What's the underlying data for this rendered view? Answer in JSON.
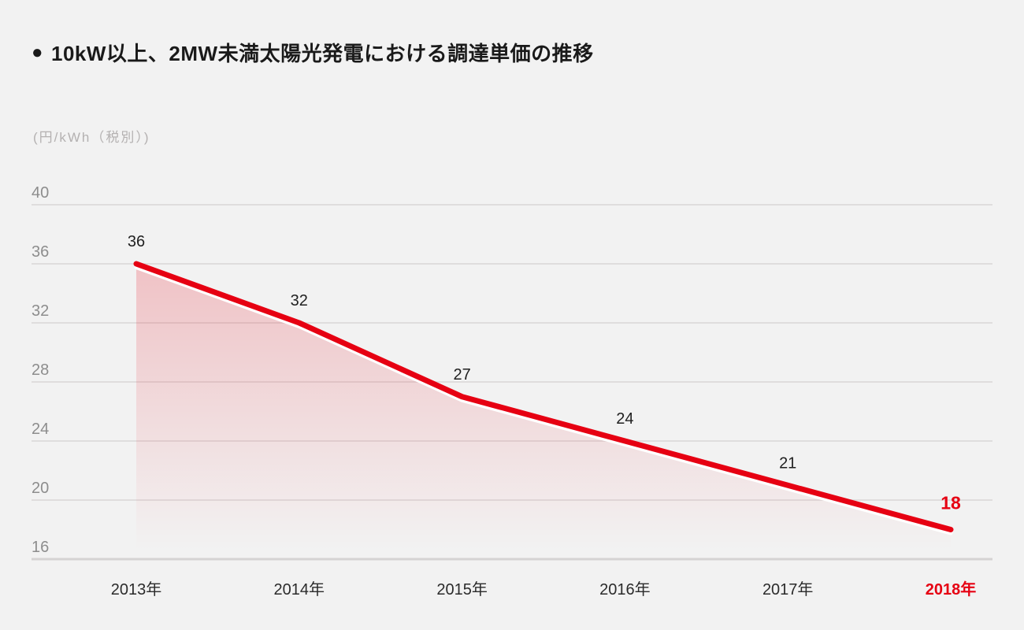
{
  "header": {
    "bullet": "●",
    "title": "10kW以上、2MW未満太陽光発電における調達単価の推移"
  },
  "axis": {
    "unit_label": "(円/kWh（税別）)"
  },
  "chart_data": {
    "type": "area",
    "title": "10kW以上、2MW未満太陽光発電における調達単価の推移",
    "ylabel": "(円/kWh（税別）)",
    "categories": [
      "2013年",
      "2014年",
      "2015年",
      "2016年",
      "2017年",
      "2018年"
    ],
    "values": [
      36,
      32,
      27,
      24,
      21,
      18
    ],
    "yticks": [
      40,
      36,
      32,
      28,
      24,
      20,
      16
    ],
    "ylim": [
      16,
      40
    ],
    "grid": "horizontal-only",
    "legend": "none",
    "highlight_index": 5,
    "colors": {
      "accent": "#e60012",
      "line": "#e60012",
      "line_underlay": "#ffffff",
      "area_top": "rgba(230,0,18,0.20)",
      "area_bottom": "rgba(230,0,18,0)",
      "value_label": "#1f1f1f",
      "category_label": "#2b2b2b",
      "tick_label": "#8d8d8d",
      "gridline": "#dfdddd",
      "axis_line": "#d5d3d3",
      "background": "#f2f2f2",
      "title_text": "#1a1a1a",
      "unit_text": "#b4b1b1"
    }
  }
}
